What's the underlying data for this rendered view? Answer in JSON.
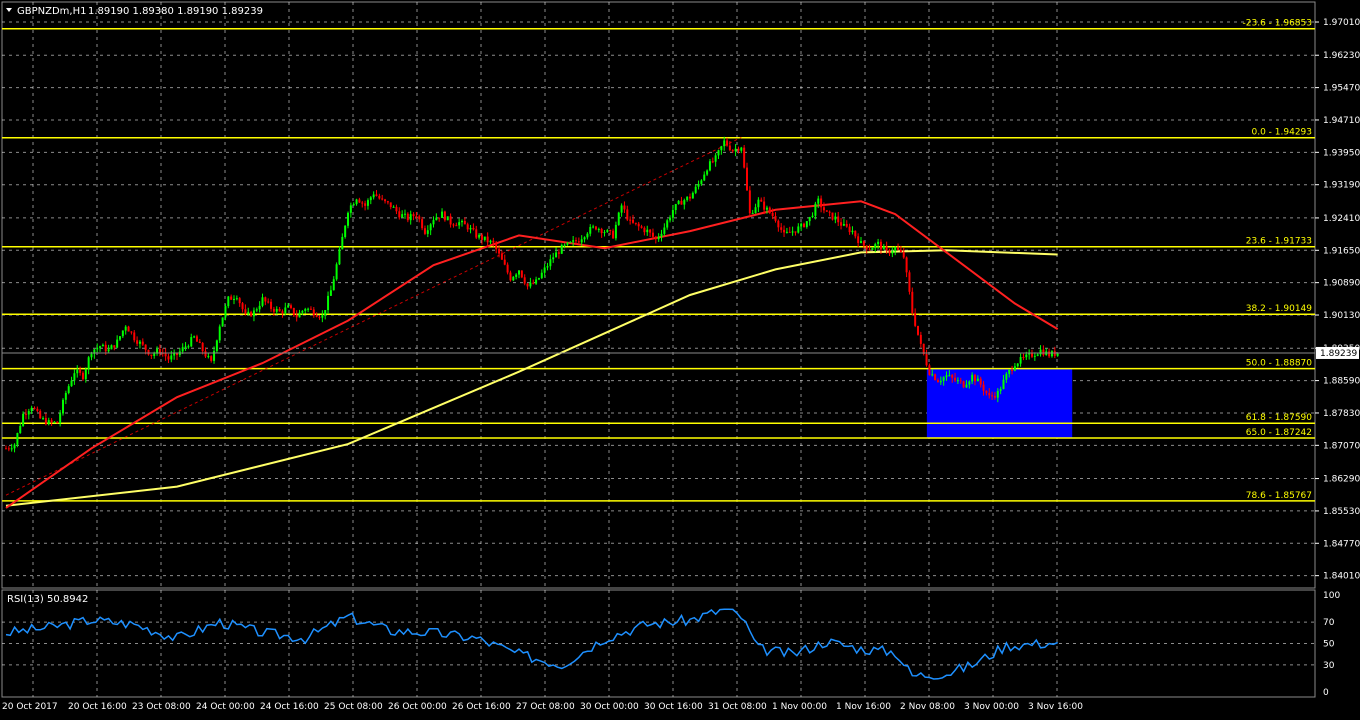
{
  "header": {
    "symbol": "GBPNZDm,H1",
    "ohlc": "1.89190 1.89380 1.89190 1.89239"
  },
  "rsi_header": "RSI(13) 50.8942",
  "current_price": "1.89239",
  "colors": {
    "background": "#000000",
    "grid": "#ffffff",
    "fib": "#ffff00",
    "bull": "#00ff00",
    "bear": "#ff0000",
    "ma_fast": "#ff2020",
    "ma_slow": "#ffff66",
    "rsi": "#1e90ff",
    "zone": "#0000ff",
    "trend": "#ff0000"
  },
  "chart_data": {
    "type": "candlestick",
    "symbol": "GBPNZDm",
    "timeframe": "H1",
    "ylim": [
      1.8372,
      1.9748
    ],
    "y_ticks": [
      "1.97010",
      "1.96230",
      "1.95470",
      "1.94710",
      "1.93950",
      "1.93190",
      "1.92410",
      "1.91650",
      "1.90890",
      "1.90130",
      "1.89350",
      "1.88590",
      "1.87830",
      "1.87070",
      "1.86290",
      "1.85530",
      "1.84770",
      "1.84010"
    ],
    "x_labels": [
      "20 Oct 2017",
      "20 Oct 16:00",
      "23 Oct 08:00",
      "24 Oct 00:00",
      "24 Oct 16:00",
      "25 Oct 08:00",
      "26 Oct 00:00",
      "26 Oct 16:00",
      "27 Oct 08:00",
      "30 Oct 00:00",
      "30 Oct 16:00",
      "31 Oct 08:00",
      "1 Nov 00:00",
      "1 Nov 16:00",
      "2 Nov 08:00",
      "3 Nov 00:00",
      "3 Nov 16:00"
    ],
    "price_path": [
      [
        0,
        1.87
      ],
      [
        1,
        1.871
      ],
      [
        2,
        1.878
      ],
      [
        3,
        1.88
      ],
      [
        4,
        1.877
      ],
      [
        5,
        1.876
      ],
      [
        6,
        1.876
      ],
      [
        7,
        1.883
      ],
      [
        8,
        1.888
      ],
      [
        9,
        1.887
      ],
      [
        10,
        1.893
      ],
      [
        11,
        1.894
      ],
      [
        12,
        1.893
      ],
      [
        13,
        1.895
      ],
      [
        14,
        1.899
      ],
      [
        15,
        1.896
      ],
      [
        16,
        1.894
      ],
      [
        17,
        1.892
      ],
      [
        18,
        1.893
      ],
      [
        19,
        1.891
      ],
      [
        20,
        1.892
      ],
      [
        21,
        1.894
      ],
      [
        22,
        1.896
      ],
      [
        23,
        1.893
      ],
      [
        24,
        1.89
      ],
      [
        25,
        1.899
      ],
      [
        26,
        1.905
      ],
      [
        27,
        1.906
      ],
      [
        28,
        1.901
      ],
      [
        29,
        1.902
      ],
      [
        30,
        1.905
      ],
      [
        31,
        1.903
      ],
      [
        32,
        1.902
      ],
      [
        33,
        1.903
      ],
      [
        34,
        1.901
      ],
      [
        35,
        1.903
      ],
      [
        36,
        1.902
      ],
      [
        37,
        1.901
      ],
      [
        38,
        1.907
      ],
      [
        39,
        1.916
      ],
      [
        40,
        1.926
      ],
      [
        41,
        1.929
      ],
      [
        42,
        1.927
      ],
      [
        43,
        1.93
      ],
      [
        44,
        1.928
      ],
      [
        45,
        1.927
      ],
      [
        46,
        1.925
      ],
      [
        47,
        1.924
      ],
      [
        48,
        1.925
      ],
      [
        49,
        1.921
      ],
      [
        50,
        1.924
      ],
      [
        51,
        1.925
      ],
      [
        52,
        1.923
      ],
      [
        53,
        1.923
      ],
      [
        54,
        1.922
      ],
      [
        55,
        1.92
      ],
      [
        56,
        1.919
      ],
      [
        57,
        1.918
      ],
      [
        58,
        1.914
      ],
      [
        59,
        1.91
      ],
      [
        60,
        1.912
      ],
      [
        61,
        1.908
      ],
      [
        62,
        1.909
      ],
      [
        63,
        1.912
      ],
      [
        64,
        1.915
      ],
      [
        65,
        1.917
      ],
      [
        66,
        1.918
      ],
      [
        67,
        1.919
      ],
      [
        68,
        1.921
      ],
      [
        69,
        1.922
      ],
      [
        70,
        1.921
      ],
      [
        71,
        1.92
      ],
      [
        72,
        1.927
      ],
      [
        73,
        1.923
      ],
      [
        74,
        1.922
      ],
      [
        75,
        1.921
      ],
      [
        76,
        1.919
      ],
      [
        77,
        1.922
      ],
      [
        78,
        1.926
      ],
      [
        79,
        1.928
      ],
      [
        80,
        1.929
      ],
      [
        81,
        1.932
      ],
      [
        82,
        1.936
      ],
      [
        83,
        1.938
      ],
      [
        84,
        1.942
      ],
      [
        85,
        1.94
      ],
      [
        86,
        1.941
      ],
      [
        87,
        1.925
      ],
      [
        88,
        1.928
      ],
      [
        89,
        1.926
      ],
      [
        90,
        1.924
      ],
      [
        91,
        1.92
      ],
      [
        92,
        1.921
      ],
      [
        93,
        1.922
      ],
      [
        94,
        1.924
      ],
      [
        95,
        1.928
      ],
      [
        96,
        1.925
      ],
      [
        97,
        1.924
      ],
      [
        98,
        1.922
      ],
      [
        99,
        1.921
      ],
      [
        100,
        1.918
      ],
      [
        101,
        1.917
      ],
      [
        102,
        1.918
      ],
      [
        103,
        1.916
      ],
      [
        104,
        1.917
      ],
      [
        105,
        1.915
      ],
      [
        106,
        1.902
      ],
      [
        107,
        1.894
      ],
      [
        108,
        1.888
      ],
      [
        109,
        1.886
      ],
      [
        110,
        1.887
      ],
      [
        111,
        1.886
      ],
      [
        112,
        1.885
      ],
      [
        113,
        1.887
      ],
      [
        114,
        1.885
      ],
      [
        115,
        1.882
      ],
      [
        116,
        1.883
      ],
      [
        117,
        1.887
      ],
      [
        118,
        1.89
      ],
      [
        119,
        1.891
      ],
      [
        120,
        1.892
      ],
      [
        121,
        1.893
      ],
      [
        122,
        1.892
      ],
      [
        123,
        1.8924
      ]
    ],
    "ma_fast": [
      [
        0,
        1.856
      ],
      [
        10,
        1.87
      ],
      [
        20,
        1.882
      ],
      [
        30,
        1.89
      ],
      [
        40,
        1.9
      ],
      [
        50,
        1.913
      ],
      [
        60,
        1.92
      ],
      [
        70,
        1.917
      ],
      [
        80,
        1.921
      ],
      [
        90,
        1.926
      ],
      [
        100,
        1.928
      ],
      [
        104,
        1.925
      ],
      [
        110,
        1.916
      ],
      [
        118,
        1.904
      ],
      [
        123,
        1.898
      ]
    ],
    "ma_slow": [
      [
        0,
        1.8565
      ],
      [
        20,
        1.861
      ],
      [
        40,
        1.871
      ],
      [
        60,
        1.888
      ],
      [
        80,
        1.906
      ],
      [
        90,
        1.912
      ],
      [
        100,
        1.916
      ],
      [
        110,
        1.9165
      ],
      [
        123,
        1.9155
      ]
    ],
    "fib_levels": [
      {
        "label": "-23.6 - 1.96853",
        "value": 1.96853
      },
      {
        "label": "0.0 - 1.94293",
        "value": 1.94293
      },
      {
        "label": "23.6 - 1.91733",
        "value": 1.91733
      },
      {
        "label": "38.2 - 1.90149",
        "value": 1.90149
      },
      {
        "label": "50.0 - 1.88870",
        "value": 1.8887
      },
      {
        "label": "61.8 - 1.87590",
        "value": 1.8759
      },
      {
        "label": "65.0 - 1.87242",
        "value": 1.87242
      },
      {
        "label": "78.6 - 1.85767",
        "value": 1.85767
      }
    ],
    "zone": {
      "from_bar": 107,
      "to_bar": 124,
      "top": 1.8887,
      "bottom": 1.87242
    },
    "trendline": [
      [
        0,
        1.859
      ],
      [
        86,
        1.943
      ]
    ],
    "rsi": {
      "period": 13,
      "value": 50.8942,
      "ylim": [
        0,
        100
      ],
      "levels": [
        30,
        50,
        70
      ],
      "ticks": [
        "100",
        "70",
        "50",
        "30",
        "0"
      ],
      "series": [
        [
          0,
          60
        ],
        [
          5,
          65
        ],
        [
          10,
          72
        ],
        [
          15,
          68
        ],
        [
          20,
          55
        ],
        [
          25,
          70
        ],
        [
          30,
          60
        ],
        [
          35,
          55
        ],
        [
          40,
          75
        ],
        [
          45,
          62
        ],
        [
          50,
          60
        ],
        [
          55,
          55
        ],
        [
          60,
          40
        ],
        [
          65,
          30
        ],
        [
          70,
          55
        ],
        [
          75,
          68
        ],
        [
          80,
          72
        ],
        [
          84,
          82
        ],
        [
          86,
          75
        ],
        [
          88,
          45
        ],
        [
          92,
          40
        ],
        [
          96,
          52
        ],
        [
          100,
          45
        ],
        [
          104,
          42
        ],
        [
          106,
          20
        ],
        [
          110,
          22
        ],
        [
          113,
          30
        ],
        [
          117,
          48
        ],
        [
          123,
          51
        ]
      ]
    }
  }
}
